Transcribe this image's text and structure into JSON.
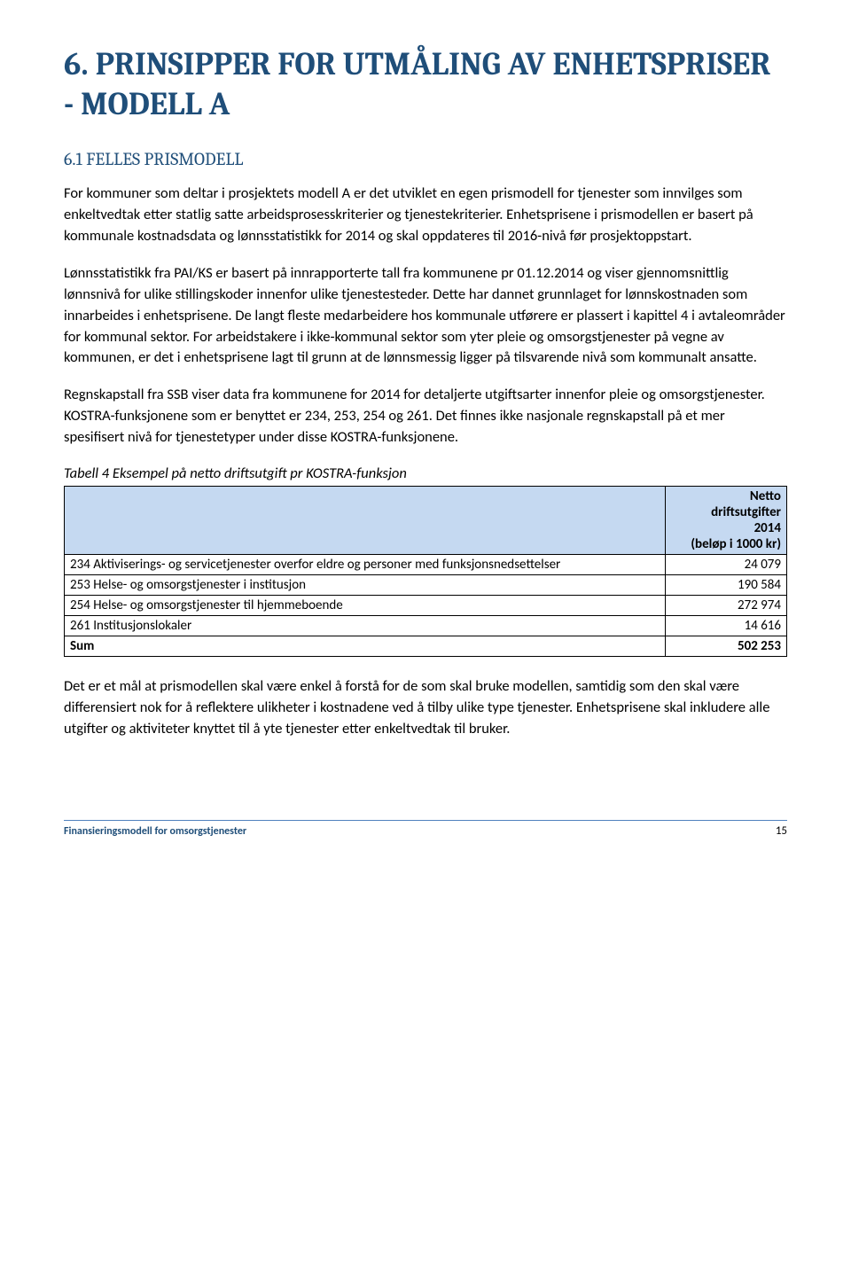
{
  "heading": {
    "number": "6.",
    "title": "PRINSIPPER FOR UTMÅLING AV ENHETSPRISER - MODELL A"
  },
  "subsection": {
    "number": "6.1",
    "title": "FELLES PRISMODELL"
  },
  "paragraphs": {
    "p1": "For kommuner som deltar i prosjektets modell A er det utviklet en egen prismodell for tjenester som innvilges som enkeltvedtak etter statlig satte arbeidsprosesskriterier og tjenestekriterier. Enhetsprisene i prismodellen er basert på kommunale kostnadsdata og lønnsstatistikk for 2014 og skal oppdateres til 2016-nivå før prosjektoppstart.",
    "p2": "Lønnsstatistikk fra PAI/KS er basert på innrapporterte tall fra kommunene pr 01.12.2014 og viser gjennomsnittlig lønnsnivå for ulike stillingskoder innenfor ulike tjenestesteder. Dette har dannet grunnlaget for lønnskostnaden som innarbeides i enhetsprisene. De langt fleste medarbeidere hos kommunale utførere er plassert i kapittel 4 i avtaleområder for kommunal sektor. For arbeidstakere i ikke-kommunal sektor som yter pleie og omsorgstjenester på vegne av kommunen, er det i enhetsprisene lagt til grunn at de lønnsmessig ligger på tilsvarende nivå som kommunalt ansatte.",
    "p3": "Regnskapstall fra SSB viser data fra kommunene for 2014 for detaljerte utgiftsarter innenfor pleie og omsorgstjenester. KOSTRA-funksjonene som er benyttet er 234, 253, 254 og 261. Det finnes ikke nasjonale regnskapstall på et mer spesifisert nivå for tjenestetyper under disse KOSTRA-funksjonene.",
    "p4": "Det er et mål at prismodellen skal være enkel å forstå for de som skal bruke modellen, samtidig som den skal være differensiert nok for å reflektere ulikheter i kostnadene ved å tilby ulike type tjenester. Enhetsprisene skal inkludere alle utgifter og aktiviteter knyttet til å yte tjenester etter enkeltvedtak til bruker."
  },
  "table": {
    "caption": "Tabell 4 Eksempel på netto driftsutgift pr KOSTRA-funksjon",
    "header": {
      "col1": "",
      "col2_line1": "Netto",
      "col2_line2": "driftsutgifter",
      "col2_line3": "2014",
      "col2_line4": "(beløp i 1000 kr)"
    },
    "rows": [
      {
        "label": "234 Aktiviserings- og servicetjenester overfor eldre og personer med funksjonsnedsettelser",
        "value": "24 079"
      },
      {
        "label": "253 Helse- og omsorgstjenester i institusjon",
        "value": "190 584"
      },
      {
        "label": "254 Helse- og omsorgstjenester til hjemmeboende",
        "value": "272 974"
      },
      {
        "label": "261 Institusjonslokaler",
        "value": "14 616"
      }
    ],
    "footer": {
      "label": "Sum",
      "value": "502 253"
    },
    "styling": {
      "header_bg": "#c5d9f1",
      "border_color": "#000000",
      "font_size": 15
    }
  },
  "footer": {
    "title": "Finansieringsmodell for omsorgstjenester",
    "page": "15"
  },
  "colors": {
    "heading": "#1f4e79",
    "body": "#000000",
    "footer_rule": "#4f81bd",
    "background": "#ffffff"
  },
  "typography": {
    "heading_family": "Cambria",
    "body_family": "Calibri",
    "heading_size_pt": 28,
    "subheading_size_pt": 15,
    "body_size_pt": 12
  }
}
